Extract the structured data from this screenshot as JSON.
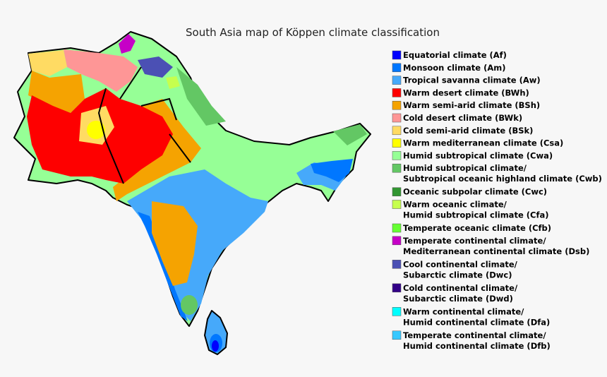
{
  "title": "South Asia map of Köppen climate classification",
  "legend": [
    {
      "lines": [
        "Equatorial climate (Af)"
      ],
      "color": "#0000fe"
    },
    {
      "lines": [
        "Monsoon climate (Am)"
      ],
      "color": "#0077ff"
    },
    {
      "lines": [
        "Tropical savanna climate (Aw)"
      ],
      "color": "#46a9fa"
    },
    {
      "lines": [
        "Warm desert climate (BWh)"
      ],
      "color": "#fe0000"
    },
    {
      "lines": [
        "Warm semi-arid climate (BSh)"
      ],
      "color": "#f5a301"
    },
    {
      "lines": [
        "Cold desert climate (BWk)"
      ],
      "color": "#fe9696"
    },
    {
      "lines": [
        "Cold semi-arid climate (BSk)"
      ],
      "color": "#ffdb63"
    },
    {
      "lines": [
        "Warm mediterranean climate (Csa)"
      ],
      "color": "#ffff00"
    },
    {
      "lines": [
        "Humid subtropical climate (Cwa)"
      ],
      "color": "#96ff96"
    },
    {
      "lines": [
        "Humid subtropical climate/",
        "Subtropical oceanic highland climate (Cwb)"
      ],
      "color": "#63c764"
    },
    {
      "lines": [
        "Oceanic subpolar climate (Cwc)"
      ],
      "color": "#329632"
    },
    {
      "lines": [
        "Warm oceanic climate/",
        "Humid subtropical climate (Cfa)"
      ],
      "color": "#c6ff4e"
    },
    {
      "lines": [
        "Temperate oceanic climate (Cfb)"
      ],
      "color": "#66ff33"
    },
    {
      "lines": [
        "Temperate continental climate/",
        "Mediterranean continental climate (Dsb)"
      ],
      "color": "#c600c7"
    },
    {
      "lines": [
        "Cool continental climate/",
        "Subarctic climate (Dwc)"
      ],
      "color": "#4b50b4"
    },
    {
      "lines": [
        "Cold continental climate/",
        "Subarctic climate (Dwd)"
      ],
      "color": "#320087"
    },
    {
      "lines": [
        "Warm continental climate/",
        "Humid continental climate (Dfa)"
      ],
      "color": "#00ffff"
    },
    {
      "lines": [
        "Temperate continental climate/",
        "Humid continental climate (Dfb)"
      ],
      "color": "#37c8ff"
    }
  ]
}
